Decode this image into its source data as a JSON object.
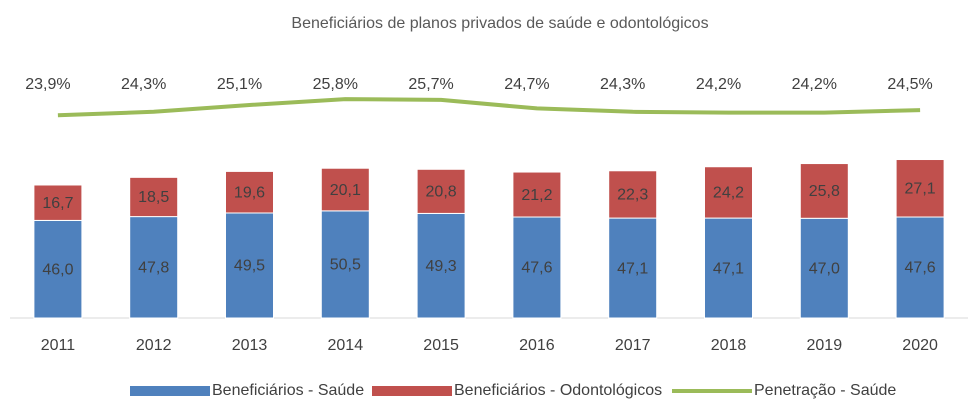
{
  "chart_data": {
    "type": "bar",
    "stacked": true,
    "title": "Beneficiários de planos privados de saúde e odontológicos",
    "categories": [
      "2011",
      "2012",
      "2013",
      "2014",
      "2015",
      "2016",
      "2017",
      "2018",
      "2019",
      "2020"
    ],
    "series": [
      {
        "name": "Beneficiários - Saúde",
        "color": "#4f81bd",
        "type": "bar",
        "values": [
          46.0,
          47.8,
          49.5,
          50.5,
          49.3,
          47.6,
          47.1,
          47.1,
          47.0,
          47.6
        ],
        "value_labels": [
          "46,0",
          "47,8",
          "49,5",
          "50,5",
          "49,3",
          "47,6",
          "47,1",
          "47,1",
          "47,0",
          "47,6"
        ]
      },
      {
        "name": "Beneficiários - Odontológicos",
        "color": "#c0504d",
        "type": "bar",
        "values": [
          16.7,
          18.5,
          19.6,
          20.1,
          20.8,
          21.2,
          22.3,
          24.2,
          25.8,
          27.1
        ],
        "value_labels": [
          "16,7",
          "18,5",
          "19,6",
          "20,1",
          "20,8",
          "21,2",
          "22,3",
          "24,2",
          "25,8",
          "27,1"
        ]
      },
      {
        "name": "Penetração - Saúde",
        "color": "#9bbb59",
        "type": "line",
        "axis": "y2",
        "values": [
          23.9,
          24.3,
          25.1,
          25.8,
          25.7,
          24.7,
          24.3,
          24.2,
          24.2,
          24.5
        ],
        "value_labels": [
          "23,9%",
          "24,3%",
          "25,1%",
          "25,8%",
          "25,7%",
          "24,7%",
          "24,3%",
          "24,2%",
          "24,2%",
          "24,5%"
        ]
      }
    ],
    "ylim": [
      0,
      140
    ],
    "y2lim": [
      0,
      35
    ],
    "legend": "bottom"
  }
}
